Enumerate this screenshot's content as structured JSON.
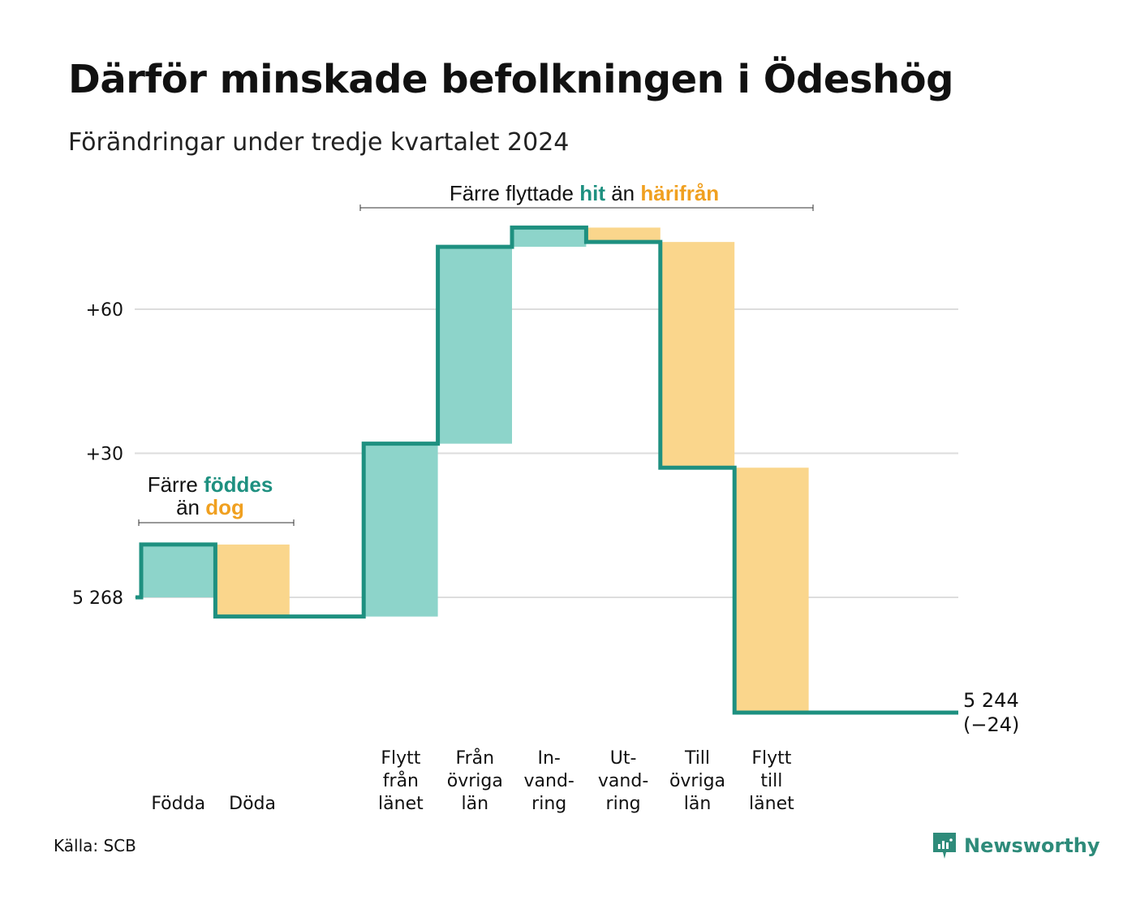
{
  "title": "Därför minskade befolkningen i Ödeshög",
  "subtitle": "Förändringar under tredje kvartalet 2024",
  "source": "Källa: SCB",
  "brand": "Newsworthy",
  "colors": {
    "line": "#1e9080",
    "positive": "#8dd4ca",
    "negative": "#fad68c",
    "grid": "#dddddd",
    "teal_text": "#1e9080",
    "orange_text": "#f0a020"
  },
  "annotations": {
    "births": {
      "line1_prefix": "Färre",
      "line1_highlight": "föddes",
      "line2_prefix": "än",
      "line2_highlight": "dog"
    },
    "migration": {
      "prefix": "Färre flyttade",
      "highlight1": "hit",
      "middle": "än",
      "highlight2": "härifrån"
    }
  },
  "end_label": {
    "value": "5 244",
    "change": "(−24)"
  },
  "chart_data": {
    "type": "waterfall",
    "title": "Därför minskade befolkningen i Ödeshög",
    "subtitle": "Förändringar under tredje kvartalet 2024",
    "start_value": 5268,
    "end_value": 5244,
    "net_change": -24,
    "y_ticks": [
      {
        "value": 0,
        "label": "5 268"
      },
      {
        "value": 30,
        "label": "+30"
      },
      {
        "value": 60,
        "label": "+60"
      }
    ],
    "ylim": [
      -24,
      85
    ],
    "grid": true,
    "categories": [
      {
        "label": [
          "Födda"
        ],
        "delta": 11,
        "sign": "positive"
      },
      {
        "label": [
          "Döda"
        ],
        "delta": -15,
        "sign": "negative"
      },
      {
        "label": [],
        "delta": 0,
        "sign": "gap"
      },
      {
        "label": [
          "Flytt",
          "från",
          "länet"
        ],
        "delta": 36,
        "sign": "positive"
      },
      {
        "label": [
          "Från",
          "övriga",
          "län"
        ],
        "delta": 41,
        "sign": "positive"
      },
      {
        "label": [
          "In-",
          "vand-",
          "ring"
        ],
        "delta": 4,
        "sign": "positive"
      },
      {
        "label": [
          "Ut-",
          "vand-",
          "ring"
        ],
        "delta": -3,
        "sign": "negative"
      },
      {
        "label": [
          "Till",
          "övriga",
          "län"
        ],
        "delta": -47,
        "sign": "negative"
      },
      {
        "label": [
          "Flytt",
          "till",
          "länet"
        ],
        "delta": -51,
        "sign": "negative"
      },
      {
        "label": [],
        "delta": 0,
        "sign": "end"
      }
    ]
  }
}
